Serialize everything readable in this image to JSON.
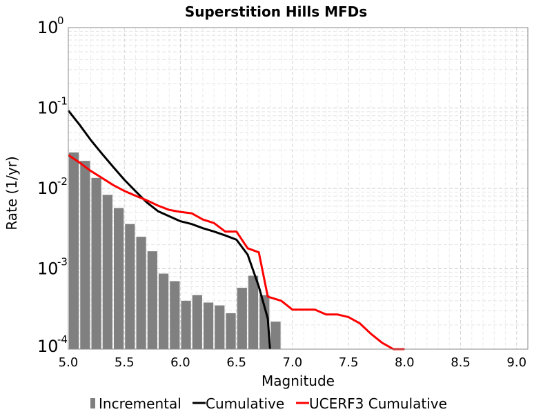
{
  "chart_data": {
    "type": "bar",
    "title": "Superstition Hills MFDs",
    "xlabel": "Magnitude",
    "ylabel": "Rate (1/yr)",
    "xlim": [
      5.0,
      9.1
    ],
    "ylim": [
      0.0001,
      1
    ],
    "yscale": "log",
    "grid": true,
    "legend_position": "bottom",
    "x_ticks": [
      "5.0",
      "5.5",
      "6.0",
      "6.5",
      "7.0",
      "7.5",
      "8.0",
      "8.5",
      "9.0"
    ],
    "y_ticks": [
      {
        "base": "10",
        "exp": "0"
      },
      {
        "base": "10",
        "exp": "-1"
      },
      {
        "base": "10",
        "exp": "-2"
      },
      {
        "base": "10",
        "exp": "-3"
      },
      {
        "base": "10",
        "exp": "-4"
      }
    ],
    "bar_width": 0.1,
    "series": [
      {
        "name": "Incremental",
        "kind": "bar",
        "color": "#808080",
        "x": [
          5.05,
          5.15,
          5.25,
          5.35,
          5.45,
          5.55,
          5.65,
          5.75,
          5.85,
          5.95,
          6.05,
          6.15,
          6.25,
          6.35,
          6.45,
          6.55,
          6.65,
          6.75,
          6.85
        ],
        "y": [
          0.028,
          0.022,
          0.0135,
          0.0083,
          0.0057,
          0.0036,
          0.0025,
          0.00165,
          0.00087,
          0.0007,
          0.0004,
          0.00047,
          0.00038,
          0.00035,
          0.00028,
          0.00058,
          0.00082,
          0.00047,
          0.00022
        ]
      },
      {
        "name": "Cumulative",
        "kind": "line",
        "color": "#000000",
        "x": [
          5.0,
          5.1,
          5.2,
          5.3,
          5.4,
          5.5,
          5.6,
          5.7,
          5.8,
          5.9,
          6.0,
          6.1,
          6.2,
          6.3,
          6.4,
          6.5,
          6.6,
          6.7,
          6.78,
          6.8
        ],
        "y": [
          0.093,
          0.062,
          0.04,
          0.027,
          0.0185,
          0.0128,
          0.0092,
          0.0067,
          0.0052,
          0.0045,
          0.0039,
          0.0036,
          0.0032,
          0.0029,
          0.0026,
          0.0023,
          0.0015,
          0.0006,
          0.00024,
          0.0001
        ]
      },
      {
        "name": "UCERF3 Cumulative",
        "kind": "line",
        "color": "#ff0000",
        "x": [
          5.0,
          5.1,
          5.2,
          5.3,
          5.4,
          5.5,
          5.6,
          5.7,
          5.8,
          5.9,
          6.0,
          6.1,
          6.2,
          6.3,
          6.4,
          6.5,
          6.6,
          6.7,
          6.78,
          6.9,
          7.0,
          7.1,
          7.2,
          7.3,
          7.4,
          7.5,
          7.6,
          7.7,
          7.8,
          7.9,
          8.0
        ],
        "y": [
          0.026,
          0.021,
          0.0165,
          0.0135,
          0.011,
          0.0093,
          0.0081,
          0.0071,
          0.0061,
          0.0054,
          0.0051,
          0.0049,
          0.0041,
          0.0037,
          0.0029,
          0.0029,
          0.0018,
          0.0016,
          0.00045,
          0.0004,
          0.00031,
          0.00031,
          0.00031,
          0.00027,
          0.00027,
          0.00025,
          0.00021,
          0.000155,
          0.00012,
          0.0001,
          9e-05
        ]
      }
    ]
  }
}
